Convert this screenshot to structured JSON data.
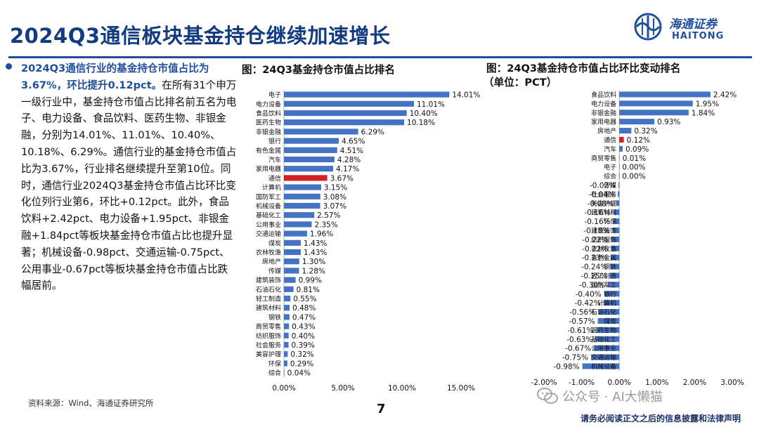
{
  "title": "2024Q3通信板块基金持仓继续加速增长",
  "logo": {
    "cn": "海通证券",
    "en": "HAITONG"
  },
  "text": {
    "bold_lead": "2024Q3通信行业的基金持仓市值占比为3.67%，环比提升0.12pct。",
    "body": "在所有31个申万一级行业中，基金持仓市值占比排名前五名为电子、电力设备、食品饮料、医药生物、非银金融，分别为14.01%、11.01%、10.40%、10.18%、6.29%。通信行业的基金持仓市值占比为3.67%，行业排名继续提升至第10位。同时，通信行业2024Q3基金持仓市值占比环比变化位列行业第6，环比+0.12pct。此外，食品饮料+2.42pct、电力设备+1.95pct、非银金融+1.84pct等板块基金持仓市值占比也提升显著；机械设备-0.98pct、交通运输-0.75pct、公用事业-0.67pct等板块基金持仓市值占比跌幅居前。"
  },
  "source": "资料来源：Wind、海通证券研究所",
  "page_number": "7",
  "disclaimer": "请务必阅读正文之后的信息披露和法律声明",
  "watermark": "公众号 · AI大懒猫",
  "colors": {
    "bar": "#4472c4",
    "highlight": "#d32020",
    "brand": "#1f4e9c"
  },
  "chart_data": [
    {
      "type": "bar",
      "orientation": "horizontal",
      "title": "图：24Q3基金持仓市值占比排名",
      "categories": [
        "电子",
        "电力设备",
        "食品饮料",
        "医药生物",
        "非银金融",
        "银行",
        "有色金属",
        "汽车",
        "家用电器",
        "通信",
        "计算机",
        "国防军工",
        "机械设备",
        "基础化工",
        "公用事业",
        "交通运输",
        "煤炭",
        "农林牧渔",
        "房地产",
        "传媒",
        "建筑装饰",
        "石油石化",
        "轻工制造",
        "建筑材料",
        "钢铁",
        "商贸零售",
        "纺织服饰",
        "社会服务",
        "美容护理",
        "环保",
        "综合"
      ],
      "values": [
        14.01,
        11.01,
        10.4,
        10.18,
        6.29,
        4.65,
        4.51,
        4.28,
        4.17,
        3.67,
        3.15,
        3.08,
        3.07,
        2.57,
        2.35,
        1.96,
        1.43,
        1.43,
        1.3,
        1.28,
        0.99,
        0.81,
        0.55,
        0.48,
        0.47,
        0.43,
        0.4,
        0.39,
        0.32,
        0.29,
        0.04
      ],
      "labels": [
        "14.01%",
        "11.01%",
        "10.40%",
        "10.18%",
        "6.29%",
        "4.65%",
        "4.51%",
        "4.28%",
        "4.17%",
        "3.67%",
        "3.15%",
        "3.08%",
        "3.07%",
        "2.57%",
        "2.35%",
        "1.96%",
        "1.43%",
        "1.43%",
        "1.30%",
        "1.28%",
        "0.99%",
        "0.81%",
        "0.55%",
        "0.48%",
        "0.47%",
        "0.43%",
        "0.40%",
        "0.39%",
        "0.32%",
        "0.29%",
        "0.04%"
      ],
      "highlight": "通信",
      "xlim": [
        0,
        15
      ],
      "xticks": [
        "0.00%",
        "5.00%",
        "10.00%",
        "15.00%"
      ]
    },
    {
      "type": "bar",
      "orientation": "horizontal",
      "title": "图：24Q3基金持仓市值占比环比变动排名",
      "subtitle": "（单位：PCT）",
      "categories": [
        "食品饮料",
        "电力设备",
        "非银金融",
        "家用电器",
        "房地产",
        "通信",
        "汽车",
        "商贸零售",
        "电子",
        "综合",
        "传媒",
        "社会服务",
        "美容护理",
        "建筑材料",
        "环保",
        "建筑装饰",
        "纺织服饰",
        "农林牧渔",
        "有色金属",
        "钢铁",
        "轻工制造",
        "国防军工",
        "银行",
        "计算机",
        "石油石化",
        "煤炭",
        "医药生物",
        "基础化工",
        "公用事业",
        "交通运输",
        "机械设备"
      ],
      "values": [
        2.42,
        1.95,
        1.84,
        0.93,
        0.32,
        0.12,
        0.09,
        0.01,
        0.0,
        0.0,
        -0.02,
        -0.04,
        -0.08,
        -0.16,
        -0.16,
        -0.18,
        -0.22,
        -0.22,
        -0.23,
        -0.24,
        -0.25,
        -0.3,
        -0.4,
        -0.42,
        -0.56,
        -0.57,
        -0.61,
        -0.63,
        -0.67,
        -0.75,
        -0.98
      ],
      "labels": [
        "2.42%",
        "1.95%",
        "1.84%",
        "0.93%",
        "0.32%",
        "0.12%",
        "0.09%",
        "0.01%",
        "0.00%",
        "0.00%",
        "-0.02%",
        "-0.04%",
        "-0.08%",
        "-0.16%",
        "-0.16%",
        "-0.18%",
        "-0.22%",
        "-0.22%",
        "-0.23%",
        "-0.24%",
        "-0.25%",
        "-0.30%",
        "-0.40%",
        "-0.42%",
        "-0.56%",
        "-0.57%",
        "-0.61%",
        "-0.63%",
        "-0.67%",
        "-0.75%",
        "-0.98%"
      ],
      "highlight": "通信",
      "xlim": [
        -2,
        3
      ],
      "xticks": [
        "-2.00%",
        "-1.00%",
        "0.00%",
        "1.00%",
        "2.00%",
        "3.00%"
      ]
    }
  ]
}
